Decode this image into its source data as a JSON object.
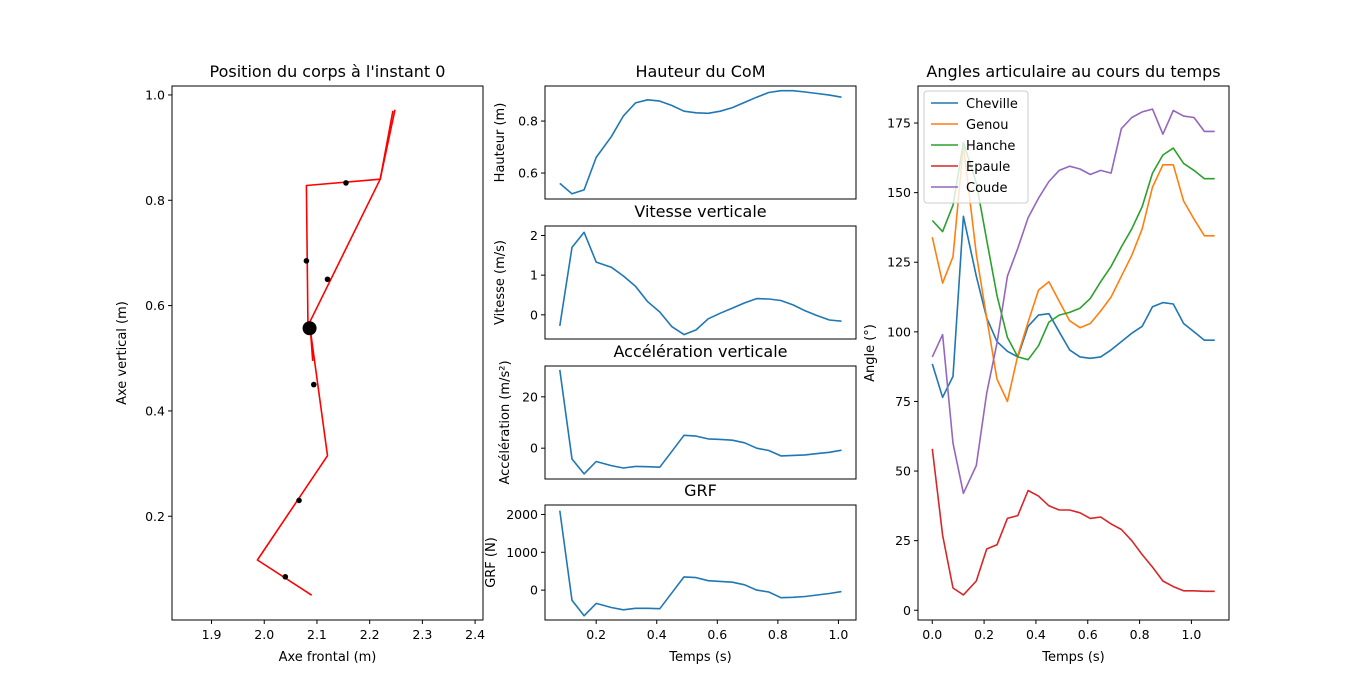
{
  "chart_data": [
    {
      "id": "body",
      "type": "line",
      "title": "Position du corps à l'instant 0",
      "xlabel": "Axe frontal (m)",
      "ylabel": "Axe vertical (m)",
      "xlim": [
        1.825,
        2.415
      ],
      "ylim": [
        0.003,
        1.017
      ],
      "xticks": [
        1.9,
        2.0,
        2.1,
        2.2,
        2.3,
        2.4
      ],
      "yticks": [
        0.2,
        0.4,
        0.6,
        0.8,
        1.0
      ],
      "xtick_labels": [
        "1.9",
        "2.0",
        "2.1",
        "2.2",
        "2.3",
        "2.4"
      ],
      "ytick_labels": [
        "0.2",
        "0.4",
        "0.6",
        "0.8",
        "1.0"
      ],
      "color_line": "#ff0000",
      "segments": [
        {
          "name": "jambe",
          "x": [
            2.09,
            1.987,
            2.12,
            2.088,
            2.092
          ],
          "y": [
            0.05,
            0.117,
            0.315,
            0.55,
            0.495
          ]
        },
        {
          "name": "tronc",
          "x": [
            2.083,
            2.08,
            2.22,
            2.244
          ],
          "y": [
            0.555,
            0.828,
            0.84,
            0.97
          ]
        },
        {
          "name": "bras",
          "x": [
            2.082,
            2.22,
            2.248
          ],
          "y": [
            0.56,
            0.84,
            0.972
          ]
        }
      ],
      "markers": {
        "x": [
          2.04,
          2.066,
          2.094,
          2.08,
          2.12,
          2.155
        ],
        "y": [
          0.085,
          0.23,
          0.45,
          0.685,
          0.65,
          0.833
        ]
      },
      "com": {
        "x": 2.086,
        "y": 0.557
      }
    },
    {
      "id": "height",
      "type": "line",
      "title": "Hauteur du CoM",
      "ylabel": "Hauteur (m)",
      "xlim": [
        0.031,
        1.058
      ],
      "ylim": [
        0.5,
        0.935
      ],
      "yticks": [
        0.6,
        0.8
      ],
      "ytick_labels": [
        "0.6",
        "0.8"
      ],
      "series": [
        {
          "color": "#1f77b4",
          "x": [
            0.08,
            0.12,
            0.16,
            0.2,
            0.25,
            0.29,
            0.33,
            0.37,
            0.41,
            0.45,
            0.49,
            0.53,
            0.57,
            0.61,
            0.65,
            0.69,
            0.73,
            0.77,
            0.81,
            0.85,
            0.89,
            0.93,
            0.97,
            1.01
          ],
          "y": [
            0.56,
            0.52,
            0.535,
            0.66,
            0.74,
            0.82,
            0.87,
            0.882,
            0.877,
            0.86,
            0.838,
            0.832,
            0.83,
            0.838,
            0.852,
            0.872,
            0.892,
            0.91,
            0.917,
            0.917,
            0.912,
            0.906,
            0.9,
            0.892
          ]
        }
      ]
    },
    {
      "id": "velocity",
      "type": "line",
      "title": "Vitesse verticale",
      "ylabel": "Vitesse (m/s)",
      "xlim": [
        0.031,
        1.058
      ],
      "ylim": [
        -0.61,
        2.24
      ],
      "yticks": [
        0,
        1,
        2
      ],
      "ytick_labels": [
        "0",
        "1",
        "2"
      ],
      "series": [
        {
          "color": "#1f77b4",
          "x": [
            0.08,
            0.12,
            0.16,
            0.2,
            0.25,
            0.29,
            0.33,
            0.37,
            0.41,
            0.45,
            0.49,
            0.53,
            0.57,
            0.61,
            0.65,
            0.69,
            0.73,
            0.77,
            0.81,
            0.85,
            0.89,
            0.93,
            0.97,
            1.01
          ],
          "y": [
            -0.28,
            1.7,
            2.08,
            1.33,
            1.2,
            0.98,
            0.72,
            0.33,
            0.07,
            -0.3,
            -0.5,
            -0.38,
            -0.1,
            0.04,
            0.17,
            0.3,
            0.41,
            0.4,
            0.36,
            0.25,
            0.1,
            -0.02,
            -0.13,
            -0.16
          ]
        }
      ]
    },
    {
      "id": "acceleration",
      "type": "line",
      "title": "Accélération verticale",
      "ylabel": "Accélération (m/s²)",
      "xlim": [
        0.031,
        1.058
      ],
      "ylim": [
        -12.0,
        32.0
      ],
      "yticks": [
        0,
        20
      ],
      "ytick_labels": [
        "0",
        "20"
      ],
      "series": [
        {
          "color": "#1f77b4",
          "x": [
            0.08,
            0.12,
            0.16,
            0.2,
            0.25,
            0.29,
            0.33,
            0.37,
            0.41,
            0.45,
            0.49,
            0.53,
            0.57,
            0.61,
            0.65,
            0.69,
            0.73,
            0.77,
            0.81,
            0.85,
            0.89,
            0.93,
            0.97,
            1.01
          ],
          "y": [
            30.5,
            -4.2,
            -10.0,
            -5.2,
            -6.8,
            -7.7,
            -7.1,
            -7.2,
            -7.4,
            -1.2,
            5.0,
            4.7,
            3.6,
            3.4,
            3.1,
            2.1,
            0.0,
            -0.9,
            -3.0,
            -2.8,
            -2.6,
            -2.1,
            -1.6,
            -0.8
          ]
        }
      ]
    },
    {
      "id": "grf",
      "type": "line",
      "title": "GRF",
      "xlabel": "Temps (s)",
      "ylabel": "GRF (N)",
      "xlim": [
        0.031,
        1.058
      ],
      "ylim": [
        -790,
        2250
      ],
      "xticks": [
        0.2,
        0.4,
        0.6,
        0.8,
        1.0
      ],
      "xtick_labels": [
        "0.2",
        "0.4",
        "0.6",
        "0.8",
        "1.0"
      ],
      "yticks": [
        0,
        1000,
        2000
      ],
      "ytick_labels": [
        "0",
        "1000",
        "2000"
      ],
      "series": [
        {
          "color": "#1f77b4",
          "x": [
            0.08,
            0.12,
            0.16,
            0.2,
            0.25,
            0.29,
            0.33,
            0.37,
            0.41,
            0.45,
            0.49,
            0.53,
            0.57,
            0.61,
            0.65,
            0.69,
            0.73,
            0.77,
            0.81,
            0.85,
            0.89,
            0.93,
            0.97,
            1.01
          ],
          "y": [
            2100,
            -270,
            -680,
            -350,
            -460,
            -520,
            -480,
            -480,
            -490,
            -70,
            350,
            330,
            250,
            230,
            210,
            140,
            0,
            -50,
            -200,
            -190,
            -170,
            -130,
            -90,
            -40
          ]
        }
      ]
    },
    {
      "id": "angles",
      "type": "line",
      "title": "Angles articulaire au cours du temps",
      "xlabel": "Temps (s)",
      "ylabel": "Angle (°)",
      "xlim": [
        -0.055,
        1.145
      ],
      "ylim": [
        -3.5,
        188.3
      ],
      "xticks": [
        0.0,
        0.2,
        0.4,
        0.6,
        0.8,
        1.0
      ],
      "xtick_labels": [
        "0.0",
        "0.2",
        "0.4",
        "0.6",
        "0.8",
        "1.0"
      ],
      "yticks": [
        0,
        25,
        50,
        75,
        100,
        125,
        150,
        175
      ],
      "ytick_labels": [
        "0",
        "25",
        "50",
        "75",
        "100",
        "125",
        "150",
        "175"
      ],
      "legend_position": "upper-left",
      "x": [
        0.0,
        0.04,
        0.08,
        0.12,
        0.17,
        0.21,
        0.25,
        0.29,
        0.33,
        0.37,
        0.41,
        0.45,
        0.49,
        0.53,
        0.57,
        0.61,
        0.65,
        0.69,
        0.73,
        0.77,
        0.81,
        0.85,
        0.89,
        0.93,
        0.97,
        1.01,
        1.05,
        1.09
      ],
      "series": [
        {
          "name": "Cheville",
          "color": "#1f77b4",
          "values": [
            88.5,
            76.5,
            84,
            141.5,
            120,
            105,
            96.5,
            93,
            91,
            102,
            106,
            106.5,
            100,
            93.5,
            91,
            90.5,
            91,
            93.5,
            96.5,
            99.5,
            102,
            109,
            110.5,
            110,
            103,
            100,
            97,
            97
          ]
        },
        {
          "name": "Genou",
          "color": "#ff7f0e",
          "values": [
            134,
            117.5,
            127,
            167,
            128,
            105,
            83,
            75,
            91.5,
            103.5,
            115,
            118,
            111,
            104,
            101.5,
            103,
            107.5,
            112.5,
            120,
            127.5,
            137,
            152,
            160,
            160,
            147,
            140.5,
            134.5,
            134.5
          ]
        },
        {
          "name": "Hanche",
          "color": "#2ca02c",
          "values": [
            140,
            136,
            145.5,
            168,
            153.5,
            133,
            113,
            98,
            91,
            90,
            95,
            103.5,
            106,
            107,
            108.5,
            112,
            118,
            123.5,
            130.5,
            137,
            145,
            157,
            163.5,
            166,
            160.5,
            158,
            155,
            155
          ]
        },
        {
          "name": "Epaule",
          "color": "#d62728",
          "values": [
            58,
            27,
            8,
            5.5,
            10.5,
            22,
            23.5,
            33,
            34,
            43,
            41,
            37.5,
            36,
            36,
            35,
            33,
            33.5,
            31,
            29,
            25,
            20,
            15.5,
            10.5,
            8.5,
            7,
            7,
            6.8,
            6.8
          ]
        },
        {
          "name": "Coude",
          "color": "#9467bd",
          "values": [
            91,
            99,
            60,
            42,
            52,
            78,
            96,
            120,
            130,
            141,
            148,
            154,
            158,
            159.5,
            158.5,
            156.5,
            158,
            157,
            173,
            177,
            179,
            180,
            171,
            179.5,
            177.5,
            177,
            172,
            172
          ]
        }
      ]
    }
  ]
}
